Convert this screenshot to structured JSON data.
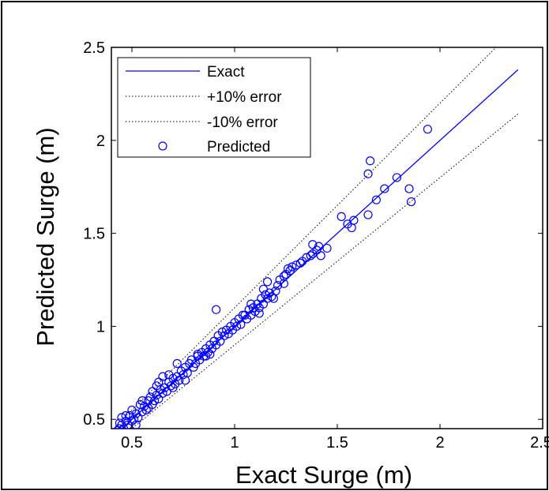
{
  "chart_data": {
    "type": "scatter",
    "title": "",
    "xlabel": "Exact Surge (m)",
    "ylabel": "Predicted Surge (m)",
    "xlim": [
      0.4,
      2.5
    ],
    "ylim": [
      0.45,
      2.5
    ],
    "xticks": [
      0.5,
      1,
      1.5,
      2,
      2.5
    ],
    "xtick_labels": [
      "0.5",
      "1",
      "1.5",
      "2",
      "2.5"
    ],
    "yticks": [
      0.5,
      1,
      1.5,
      2,
      2.5
    ],
    "ytick_labels": [
      "0.5",
      "1",
      "1.5",
      "2",
      "2.5"
    ],
    "grid": false,
    "legend_position": "top-left",
    "legend": [
      {
        "label": "Exact",
        "style": "solid-line",
        "color": "#0000ff"
      },
      {
        "label": "+10% error",
        "style": "dotted-line",
        "color": "#000000"
      },
      {
        "label": "-10% error",
        "style": "dotted-line",
        "color": "#000000"
      },
      {
        "label": "Predicted",
        "style": "circle-marker",
        "color": "#0000ff"
      }
    ],
    "lines": [
      {
        "name": "Exact",
        "x": [
          0.42,
          2.38
        ],
        "y": [
          0.42,
          2.38
        ],
        "color": "#0000ff",
        "dash": "solid"
      },
      {
        "name": "+10% error",
        "x": [
          0.42,
          2.27
        ],
        "y": [
          0.462,
          2.497
        ],
        "color": "#000000",
        "dash": "dotted"
      },
      {
        "name": "-10% error",
        "x": [
          0.42,
          2.38
        ],
        "y": [
          0.378,
          2.142
        ],
        "color": "#000000",
        "dash": "dotted"
      }
    ],
    "series": [
      {
        "name": "Predicted",
        "color": "#0000ff",
        "marker": "circle",
        "points": [
          [
            0.42,
            0.43
          ],
          [
            0.43,
            0.44
          ],
          [
            0.44,
            0.45
          ],
          [
            0.45,
            0.47
          ],
          [
            0.46,
            0.45
          ],
          [
            0.44,
            0.48
          ],
          [
            0.47,
            0.49
          ],
          [
            0.48,
            0.47
          ],
          [
            0.45,
            0.51
          ],
          [
            0.5,
            0.49
          ],
          [
            0.49,
            0.52
          ],
          [
            0.51,
            0.5
          ],
          [
            0.52,
            0.53
          ],
          [
            0.5,
            0.55
          ],
          [
            0.53,
            0.51
          ],
          [
            0.55,
            0.54
          ],
          [
            0.56,
            0.57
          ],
          [
            0.54,
            0.58
          ],
          [
            0.57,
            0.55
          ],
          [
            0.58,
            0.6
          ],
          [
            0.6,
            0.58
          ],
          [
            0.59,
            0.62
          ],
          [
            0.61,
            0.6
          ],
          [
            0.62,
            0.63
          ],
          [
            0.6,
            0.65
          ],
          [
            0.63,
            0.61
          ],
          [
            0.64,
            0.66
          ],
          [
            0.65,
            0.64
          ],
          [
            0.63,
            0.7
          ],
          [
            0.66,
            0.67
          ],
          [
            0.67,
            0.65
          ],
          [
            0.68,
            0.7
          ],
          [
            0.69,
            0.68
          ],
          [
            0.7,
            0.72
          ],
          [
            0.68,
            0.74
          ],
          [
            0.71,
            0.69
          ],
          [
            0.72,
            0.73
          ],
          [
            0.73,
            0.71
          ],
          [
            0.74,
            0.76
          ],
          [
            0.75,
            0.74
          ],
          [
            0.72,
            0.8
          ],
          [
            0.76,
            0.78
          ],
          [
            0.77,
            0.75
          ],
          [
            0.78,
            0.8
          ],
          [
            0.8,
            0.78
          ],
          [
            0.79,
            0.82
          ],
          [
            0.81,
            0.8
          ],
          [
            0.82,
            0.84
          ],
          [
            0.83,
            0.82
          ],
          [
            0.84,
            0.86
          ],
          [
            0.85,
            0.84
          ],
          [
            0.86,
            0.88
          ],
          [
            0.87,
            0.86
          ],
          [
            0.88,
            0.9
          ],
          [
            0.89,
            0.88
          ],
          [
            0.9,
            0.92
          ],
          [
            0.91,
            0.9
          ],
          [
            0.92,
            0.95
          ],
          [
            0.93,
            0.92
          ],
          [
            0.94,
            0.97
          ],
          [
            0.95,
            0.95
          ],
          [
            0.96,
            0.98
          ],
          [
            0.97,
            0.96
          ],
          [
            0.98,
            1.0
          ],
          [
            0.99,
            0.98
          ],
          [
            1.0,
            1.02
          ],
          [
            1.01,
            1.0
          ],
          [
            1.02,
            1.04
          ],
          [
            1.03,
            1.01
          ],
          [
            1.05,
            1.06
          ],
          [
            1.06,
            1.04
          ],
          [
            1.07,
            1.09
          ],
          [
            1.08,
            1.06
          ],
          [
            1.09,
            1.1
          ],
          [
            1.1,
            1.08
          ],
          [
            1.11,
            1.12
          ],
          [
            1.12,
            1.1
          ],
          [
            1.13,
            1.15
          ],
          [
            1.14,
            1.12
          ],
          [
            1.15,
            1.17
          ],
          [
            1.16,
            1.15
          ],
          [
            1.17,
            1.18
          ],
          [
            1.18,
            1.16
          ],
          [
            1.2,
            1.19
          ],
          [
            1.21,
            1.22
          ],
          [
            1.22,
            1.25
          ],
          [
            1.24,
            1.27
          ],
          [
            1.25,
            1.28
          ],
          [
            1.27,
            1.3
          ],
          [
            1.28,
            1.32
          ],
          [
            1.3,
            1.33
          ],
          [
            1.32,
            1.34
          ],
          [
            1.33,
            1.35
          ],
          [
            1.35,
            1.37
          ],
          [
            1.37,
            1.38
          ],
          [
            1.38,
            1.39
          ],
          [
            1.4,
            1.41
          ],
          [
            1.41,
            1.43
          ],
          [
            1.42,
            1.38
          ],
          [
            1.45,
            1.42
          ],
          [
            1.38,
            1.44
          ],
          [
            1.16,
            1.24
          ],
          [
            1.24,
            1.23
          ],
          [
            1.14,
            1.2
          ],
          [
            0.91,
            1.09
          ],
          [
            0.86,
            0.84
          ],
          [
            0.82,
            0.85
          ],
          [
            0.7,
            0.67
          ],
          [
            0.62,
            0.68
          ],
          [
            0.65,
            0.73
          ],
          [
            0.58,
            0.56
          ],
          [
            0.55,
            0.6
          ],
          [
            0.47,
            0.52
          ],
          [
            0.52,
            0.47
          ],
          [
            0.76,
            0.71
          ],
          [
            0.88,
            0.85
          ],
          [
            1.04,
            1.06
          ],
          [
            1.08,
            1.12
          ],
          [
            1.12,
            1.07
          ],
          [
            1.19,
            1.15
          ],
          [
            1.26,
            1.31
          ],
          [
            1.52,
            1.59
          ],
          [
            1.55,
            1.55
          ],
          [
            1.57,
            1.53
          ],
          [
            1.58,
            1.57
          ],
          [
            1.65,
            1.82
          ],
          [
            1.66,
            1.89
          ],
          [
            1.65,
            1.6
          ],
          [
            1.69,
            1.68
          ],
          [
            1.73,
            1.74
          ],
          [
            1.79,
            1.8
          ],
          [
            1.85,
            1.74
          ],
          [
            1.86,
            1.67
          ],
          [
            1.94,
            2.06
          ]
        ]
      }
    ]
  }
}
